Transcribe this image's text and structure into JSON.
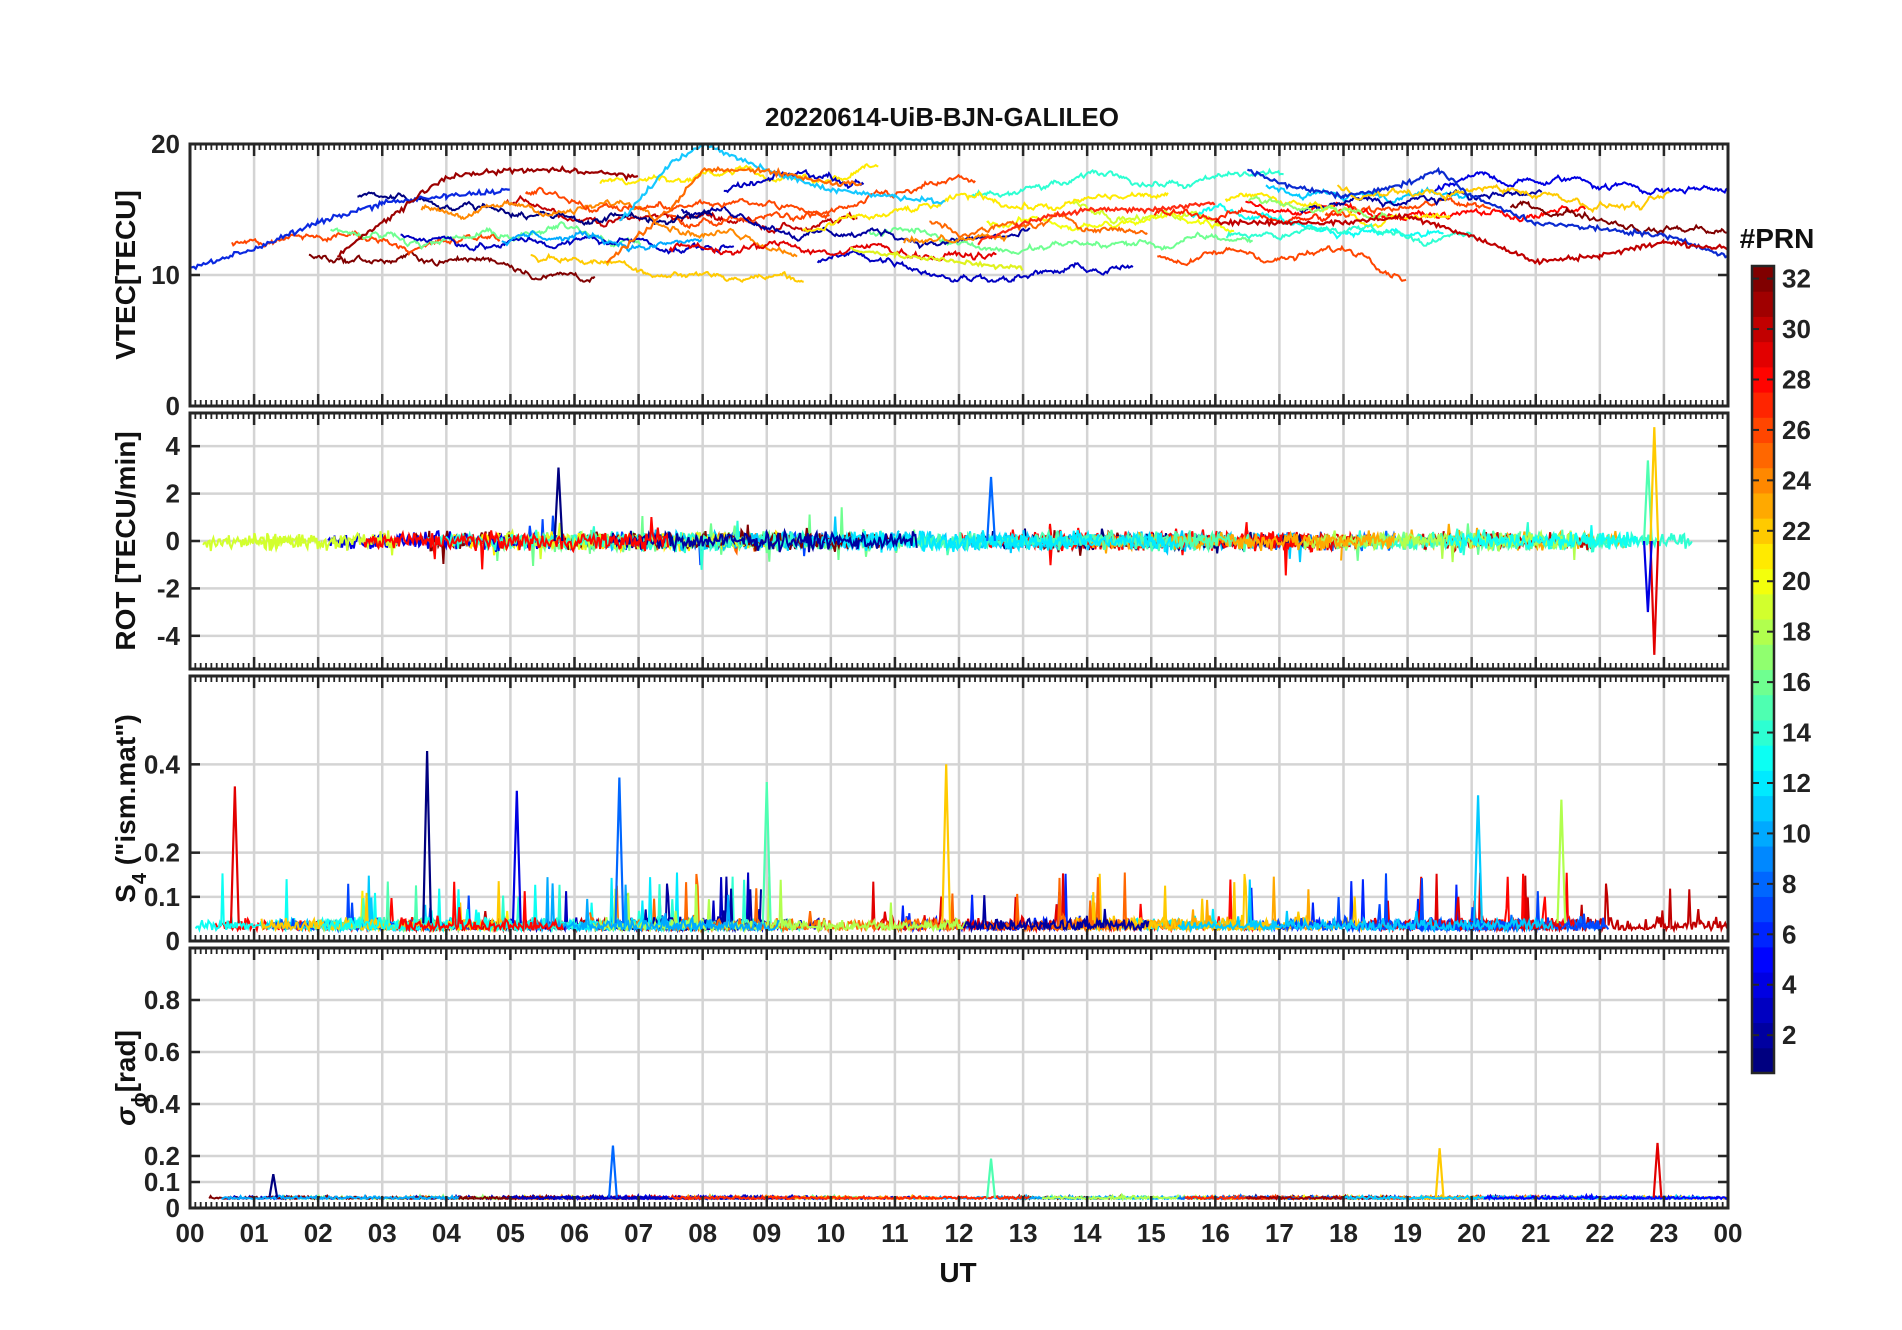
{
  "figure": {
    "title": "20220614-UiB-BJN-GALILEO",
    "xlabel": "UT",
    "x_tick_labels": [
      "00",
      "01",
      "02",
      "03",
      "04",
      "05",
      "06",
      "07",
      "08",
      "09",
      "10",
      "11",
      "12",
      "13",
      "14",
      "15",
      "16",
      "17",
      "18",
      "19",
      "20",
      "21",
      "22",
      "23",
      "00"
    ]
  },
  "chart_data": [
    {
      "type": "line",
      "panel": "vtec",
      "ylabel": "VTEC[TECU]",
      "xlim": [
        0,
        24
      ],
      "ylim": [
        0,
        20
      ],
      "y_ticks": [
        0,
        10,
        20
      ],
      "y_tick_labels": [
        "0",
        "10",
        "20"
      ],
      "grid": true,
      "series_by_prn_approx": [
        {
          "prn": 3,
          "color": "#0a28e0",
          "x": [
            0,
            1,
            2,
            3,
            4,
            5
          ],
          "y": [
            10.5,
            12,
            14,
            15.5,
            16,
            16.5
          ]
        },
        {
          "prn": 31,
          "color": "#9b0000",
          "x": [
            2.3,
            3,
            4,
            5,
            6,
            7
          ],
          "y": [
            11.5,
            14,
            17.5,
            18,
            18,
            17.5
          ]
        },
        {
          "prn": 11,
          "color": "#15c8ff",
          "x": [
            6.7,
            7.5,
            8,
            9,
            10,
            11,
            11.8
          ],
          "y": [
            14,
            18.5,
            20,
            18,
            16.5,
            16,
            15.5
          ]
        },
        {
          "prn": 24,
          "color": "#ff6a00",
          "x": [
            6.5,
            7.5,
            8,
            9,
            10,
            10.5
          ],
          "y": [
            11,
            15,
            18,
            18,
            17,
            17
          ]
        },
        {
          "prn": 28,
          "color": "#ff2a10",
          "x": [
            12.3,
            13,
            14,
            15,
            16
          ],
          "y": [
            12.5,
            14,
            15,
            15,
            15.5
          ]
        },
        {
          "prn": 20,
          "color": "#dff21e",
          "x": [
            10.3,
            11,
            12,
            13
          ],
          "y": [
            12,
            11.5,
            11,
            10.5
          ]
        },
        {
          "prn": 4,
          "color": "#0a2ad0",
          "x": [
            16.5,
            17,
            18,
            19,
            19.5,
            20,
            21,
            22,
            23,
            24
          ],
          "y": [
            18,
            17,
            16,
            17,
            18,
            16,
            14,
            13.5,
            13,
            11.5
          ]
        },
        {
          "prn": 30,
          "color": "#c00000",
          "x": [
            16,
            17,
            18,
            19,
            20,
            21,
            22,
            23,
            24
          ],
          "y": [
            14,
            14,
            14,
            14.5,
            13,
            11,
            11.5,
            12.5,
            12
          ]
        }
      ]
    },
    {
      "type": "line",
      "panel": "rot",
      "ylabel": "ROT [TECU/min]",
      "xlim": [
        0,
        24
      ],
      "ylim": [
        -5.4,
        5.4
      ],
      "y_ticks": [
        -4,
        -2,
        0,
        2,
        4
      ],
      "y_tick_labels": [
        "-4",
        "-2",
        "0",
        "2",
        "4"
      ],
      "grid": true,
      "notable_spikes": [
        {
          "x": 5.75,
          "y": 3.1
        },
        {
          "x": 12.5,
          "y": 2.7
        },
        {
          "x": 22.75,
          "y": 3.4
        },
        {
          "x": 22.85,
          "y": 4.8
        },
        {
          "x": 22.85,
          "y": -4.8
        },
        {
          "x": 22.75,
          "y": -3.0
        }
      ]
    },
    {
      "type": "line",
      "panel": "s4",
      "ylabel": "S",
      "ylabel_sub": "4",
      "ylabel_suffix": " (\"ism.mat\")",
      "xlim": [
        0,
        24
      ],
      "ylim": [
        0,
        0.6
      ],
      "y_ticks": [
        0,
        0.1,
        0.2,
        0.4
      ],
      "y_tick_labels": [
        "0",
        "0.1",
        "0.2",
        "0.4"
      ],
      "grid": true,
      "notable_peaks": [
        {
          "x": 3.7,
          "y": 0.43
        },
        {
          "x": 6.7,
          "y": 0.37
        },
        {
          "x": 9.0,
          "y": 0.36
        },
        {
          "x": 11.8,
          "y": 0.4
        },
        {
          "x": 0.7,
          "y": 0.35
        },
        {
          "x": 5.1,
          "y": 0.34
        },
        {
          "x": 20.1,
          "y": 0.33
        },
        {
          "x": 21.4,
          "y": 0.32
        }
      ]
    },
    {
      "type": "line",
      "panel": "sigma_phi",
      "ylabel": "σ",
      "ylabel_sub": "ϕ",
      "ylabel_suffix": "[rad]",
      "xlim": [
        0,
        24
      ],
      "ylim": [
        0,
        1
      ],
      "y_ticks": [
        0,
        0.1,
        0.2,
        0.4,
        0.6,
        0.8
      ],
      "y_tick_labels": [
        "0",
        "0.1",
        "0.2",
        "0.4",
        "0.6",
        "0.8"
      ],
      "grid": true,
      "notable_peaks": [
        {
          "x": 1.3,
          "y": 0.13
        },
        {
          "x": 6.6,
          "y": 0.24
        },
        {
          "x": 12.5,
          "y": 0.19
        },
        {
          "x": 19.5,
          "y": 0.23
        },
        {
          "x": 22.9,
          "y": 0.25
        }
      ]
    }
  ],
  "colorbar": {
    "title": "#PRN",
    "range": [
      1,
      32
    ],
    "tick_labels": [
      "2",
      "4",
      "6",
      "8",
      "10",
      "12",
      "14",
      "16",
      "18",
      "20",
      "22",
      "24",
      "26",
      "28",
      "30",
      "32"
    ],
    "colormap": "jet"
  }
}
